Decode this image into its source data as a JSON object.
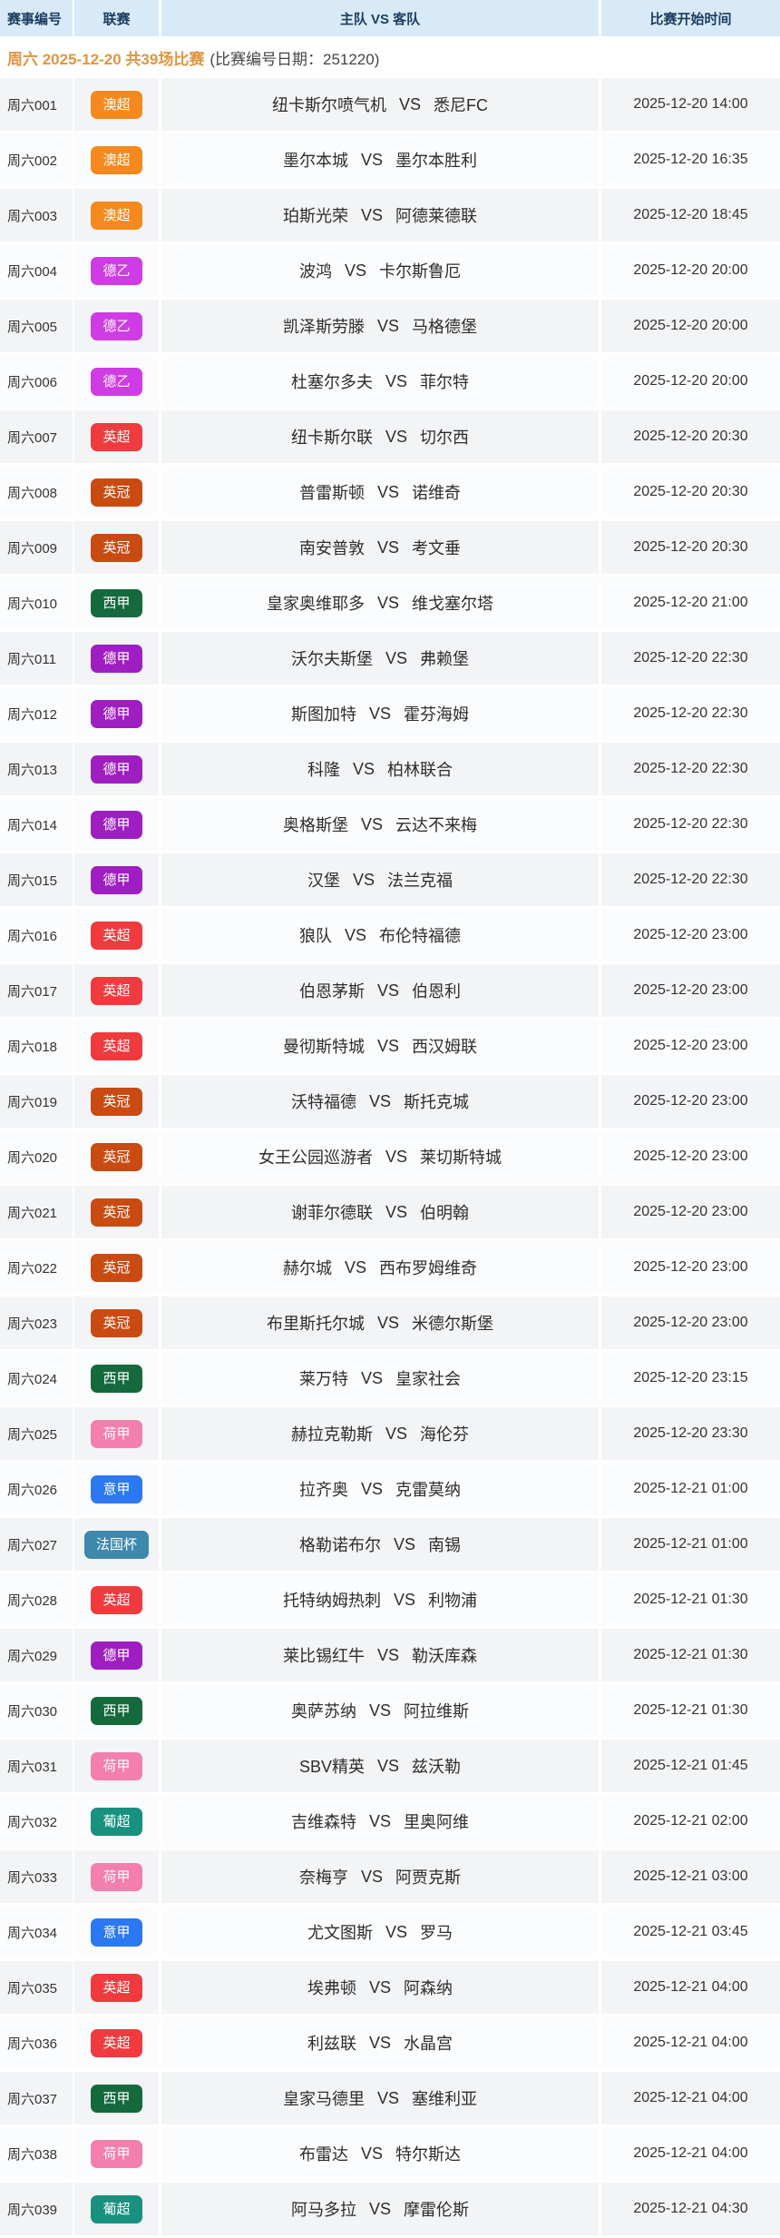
{
  "header": {
    "columns": [
      "赛事编号",
      "联赛",
      "主队 VS 客队",
      "比赛开始时间"
    ]
  },
  "subheader": {
    "highlight": "周六 2025-12-20 共39场比赛",
    "note": "(比赛编号日期：251220)"
  },
  "vs_label": "VS",
  "colors": {
    "header_bg": "#d8eaf7",
    "header_text": "#1c3d61",
    "subheader_orange": "#e0953f",
    "row_gray": "#f3f4f6",
    "row_light": "#fbfcfd"
  },
  "league_colors": {
    "澳超": "#f6891e",
    "德乙": "#cf3be4",
    "英超": "#f03b3e",
    "英冠": "#c94b12",
    "西甲": "#156a3d",
    "德甲": "#9e1ec2",
    "荷甲": "#f27fae",
    "意甲": "#2b78f2",
    "法国杯": "#3e88ad",
    "葡超": "#18917f"
  },
  "matches": [
    {
      "no": "周六001",
      "league": "澳超",
      "home": "纽卡斯尔喷气机",
      "away": "悉尼FC",
      "time": "2025-12-20 14:00"
    },
    {
      "no": "周六002",
      "league": "澳超",
      "home": "墨尔本城",
      "away": "墨尔本胜利",
      "time": "2025-12-20 16:35"
    },
    {
      "no": "周六003",
      "league": "澳超",
      "home": "珀斯光荣",
      "away": "阿德莱德联",
      "time": "2025-12-20 18:45"
    },
    {
      "no": "周六004",
      "league": "德乙",
      "home": "波鸿",
      "away": "卡尔斯鲁厄",
      "time": "2025-12-20 20:00"
    },
    {
      "no": "周六005",
      "league": "德乙",
      "home": "凯泽斯劳滕",
      "away": "马格德堡",
      "time": "2025-12-20 20:00"
    },
    {
      "no": "周六006",
      "league": "德乙",
      "home": "杜塞尔多夫",
      "away": "菲尔特",
      "time": "2025-12-20 20:00"
    },
    {
      "no": "周六007",
      "league": "英超",
      "home": "纽卡斯尔联",
      "away": "切尔西",
      "time": "2025-12-20 20:30"
    },
    {
      "no": "周六008",
      "league": "英冠",
      "home": "普雷斯顿",
      "away": "诺维奇",
      "time": "2025-12-20 20:30"
    },
    {
      "no": "周六009",
      "league": "英冠",
      "home": "南安普敦",
      "away": "考文垂",
      "time": "2025-12-20 20:30"
    },
    {
      "no": "周六010",
      "league": "西甲",
      "home": "皇家奥维耶多",
      "away": "维戈塞尔塔",
      "time": "2025-12-20 21:00"
    },
    {
      "no": "周六011",
      "league": "德甲",
      "home": "沃尔夫斯堡",
      "away": "弗赖堡",
      "time": "2025-12-20 22:30"
    },
    {
      "no": "周六012",
      "league": "德甲",
      "home": "斯图加特",
      "away": "霍芬海姆",
      "time": "2025-12-20 22:30"
    },
    {
      "no": "周六013",
      "league": "德甲",
      "home": "科隆",
      "away": "柏林联合",
      "time": "2025-12-20 22:30"
    },
    {
      "no": "周六014",
      "league": "德甲",
      "home": "奥格斯堡",
      "away": "云达不来梅",
      "time": "2025-12-20 22:30"
    },
    {
      "no": "周六015",
      "league": "德甲",
      "home": "汉堡",
      "away": "法兰克福",
      "time": "2025-12-20 22:30"
    },
    {
      "no": "周六016",
      "league": "英超",
      "home": "狼队",
      "away": "布伦特福德",
      "time": "2025-12-20 23:00"
    },
    {
      "no": "周六017",
      "league": "英超",
      "home": "伯恩茅斯",
      "away": "伯恩利",
      "time": "2025-12-20 23:00"
    },
    {
      "no": "周六018",
      "league": "英超",
      "home": "曼彻斯特城",
      "away": "西汉姆联",
      "time": "2025-12-20 23:00"
    },
    {
      "no": "周六019",
      "league": "英冠",
      "home": "沃特福德",
      "away": "斯托克城",
      "time": "2025-12-20 23:00"
    },
    {
      "no": "周六020",
      "league": "英冠",
      "home": "女王公园巡游者",
      "away": "莱切斯特城",
      "time": "2025-12-20 23:00"
    },
    {
      "no": "周六021",
      "league": "英冠",
      "home": "谢菲尔德联",
      "away": "伯明翰",
      "time": "2025-12-20 23:00"
    },
    {
      "no": "周六022",
      "league": "英冠",
      "home": "赫尔城",
      "away": "西布罗姆维奇",
      "time": "2025-12-20 23:00"
    },
    {
      "no": "周六023",
      "league": "英冠",
      "home": "布里斯托尔城",
      "away": "米德尔斯堡",
      "time": "2025-12-20 23:00"
    },
    {
      "no": "周六024",
      "league": "西甲",
      "home": "莱万特",
      "away": "皇家社会",
      "time": "2025-12-20 23:15"
    },
    {
      "no": "周六025",
      "league": "荷甲",
      "home": "赫拉克勒斯",
      "away": "海伦芬",
      "time": "2025-12-20 23:30"
    },
    {
      "no": "周六026",
      "league": "意甲",
      "home": "拉齐奥",
      "away": "克雷莫纳",
      "time": "2025-12-21 01:00"
    },
    {
      "no": "周六027",
      "league": "法国杯",
      "home": "格勒诺布尔",
      "away": "南锡",
      "time": "2025-12-21 01:00"
    },
    {
      "no": "周六028",
      "league": "英超",
      "home": "托特纳姆热刺",
      "away": "利物浦",
      "time": "2025-12-21 01:30"
    },
    {
      "no": "周六029",
      "league": "德甲",
      "home": "莱比锡红牛",
      "away": "勒沃库森",
      "time": "2025-12-21 01:30"
    },
    {
      "no": "周六030",
      "league": "西甲",
      "home": "奥萨苏纳",
      "away": "阿拉维斯",
      "time": "2025-12-21 01:30"
    },
    {
      "no": "周六031",
      "league": "荷甲",
      "home": "SBV精英",
      "away": "兹沃勒",
      "time": "2025-12-21 01:45"
    },
    {
      "no": "周六032",
      "league": "葡超",
      "home": "吉维森特",
      "away": "里奥阿维",
      "time": "2025-12-21 02:00"
    },
    {
      "no": "周六033",
      "league": "荷甲",
      "home": "奈梅亨",
      "away": "阿贾克斯",
      "time": "2025-12-21 03:00"
    },
    {
      "no": "周六034",
      "league": "意甲",
      "home": "尤文图斯",
      "away": "罗马",
      "time": "2025-12-21 03:45"
    },
    {
      "no": "周六035",
      "league": "英超",
      "home": "埃弗顿",
      "away": "阿森纳",
      "time": "2025-12-21 04:00"
    },
    {
      "no": "周六036",
      "league": "英超",
      "home": "利兹联",
      "away": "水晶宫",
      "time": "2025-12-21 04:00"
    },
    {
      "no": "周六037",
      "league": "西甲",
      "home": "皇家马德里",
      "away": "塞维利亚",
      "time": "2025-12-21 04:00"
    },
    {
      "no": "周六038",
      "league": "荷甲",
      "home": "布雷达",
      "away": "特尔斯达",
      "time": "2025-12-21 04:00"
    },
    {
      "no": "周六039",
      "league": "葡超",
      "home": "阿马多拉",
      "away": "摩雷伦斯",
      "time": "2025-12-21 04:30"
    }
  ]
}
